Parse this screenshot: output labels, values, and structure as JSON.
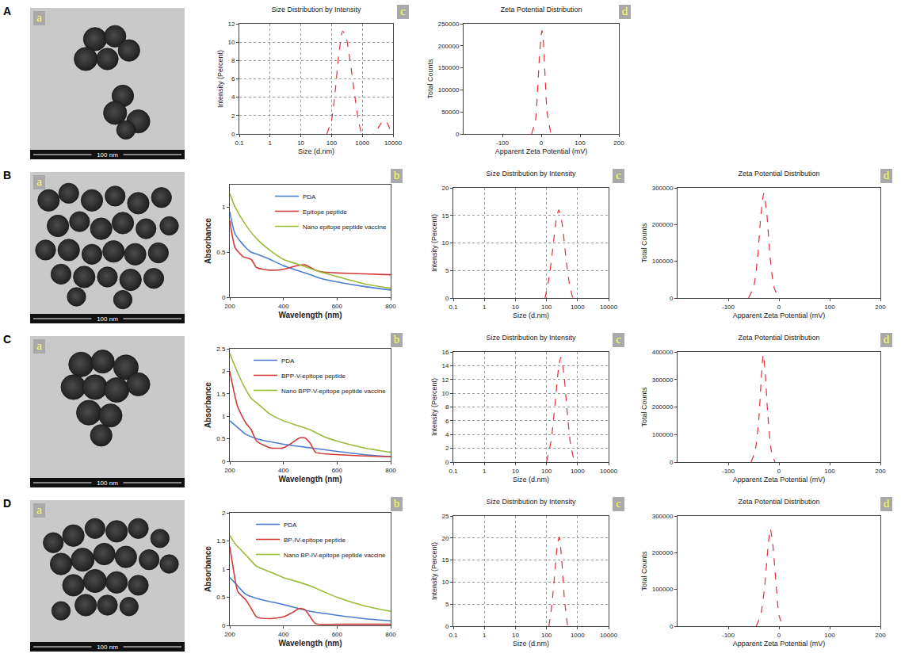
{
  "chart_data": [
    {
      "type": "image",
      "row": "A",
      "panel": "a",
      "scale_bar": "100 nm"
    },
    {
      "type": "line",
      "row": "A",
      "panel": "c",
      "title": "Size Distribution by Intensity",
      "x_label": "Size (d.nm)",
      "y_label": "Intensity (Percent)",
      "log": "x",
      "grid": true,
      "line_style": "dash",
      "color": "#e0303a",
      "xlim": [
        0.1,
        10000
      ],
      "xticks": [
        0.1,
        1,
        10,
        100,
        1000,
        10000
      ],
      "ylim": [
        0,
        12
      ],
      "yticks": [
        0,
        2,
        4,
        6,
        8,
        10,
        12
      ],
      "x": [
        70,
        100,
        130,
        170,
        230,
        300,
        400,
        550,
        750,
        1000,
        2400,
        3200,
        4200,
        5500,
        7000,
        8500
      ],
      "values": [
        0,
        1.5,
        4.5,
        8.5,
        11.2,
        10.5,
        8,
        4.5,
        1.5,
        0,
        0,
        0.6,
        1.2,
        1.5,
        1,
        0
      ]
    },
    {
      "type": "line",
      "row": "A",
      "panel": "d",
      "title": "Zeta Potential Distribution",
      "x_label": "Apparent Zeta Potential (mV)",
      "y_label": "Total Counts",
      "grid": false,
      "line_style": "dash",
      "color": "#e0303a",
      "xlim": [
        -200,
        200
      ],
      "xticks": [
        -100,
        0,
        100,
        200
      ],
      "ylim": [
        0,
        250000
      ],
      "yticks": [
        0,
        50000,
        100000,
        150000,
        200000,
        250000
      ],
      "x": [
        -25,
        -15,
        -10,
        -5,
        0,
        2,
        5,
        10,
        15,
        25
      ],
      "values": [
        0,
        30000,
        90000,
        170000,
        225000,
        235000,
        215000,
        130000,
        50000,
        0
      ]
    },
    {
      "type": "image",
      "row": "B",
      "panel": "a",
      "scale_bar": "100 nm"
    },
    {
      "type": "line",
      "row": "B",
      "panel": "b",
      "x_label": "Wavelength (nm)",
      "y_label": "Absorbance",
      "legend": "top-right",
      "grid": false,
      "xlim": [
        200,
        800
      ],
      "xticks": [
        200,
        400,
        600,
        800
      ],
      "ylim": [
        0,
        1.25
      ],
      "yticks": [
        0,
        0.5,
        1
      ],
      "series": [
        {
          "name": "PDA",
          "color": "#4a7fd0",
          "x": [
            200,
            220,
            260,
            280,
            300,
            350,
            400,
            450,
            500,
            550,
            600,
            700,
            800
          ],
          "values": [
            0.95,
            0.7,
            0.55,
            0.5,
            0.48,
            0.42,
            0.35,
            0.3,
            0.25,
            0.2,
            0.17,
            0.12,
            0.08
          ]
        },
        {
          "name": "Epitope peptide",
          "color": "#d23a3a",
          "x": [
            200,
            220,
            250,
            280,
            300,
            350,
            400,
            450,
            480,
            520,
            550,
            600,
            700,
            800
          ],
          "values": [
            0.85,
            0.55,
            0.45,
            0.42,
            0.33,
            0.3,
            0.31,
            0.35,
            0.36,
            0.3,
            0.28,
            0.27,
            0.26,
            0.25
          ]
        },
        {
          "name": "Nano epitope peptide vaccine",
          "color": "#9bbb3b",
          "x": [
            200,
            220,
            260,
            300,
            350,
            400,
            450,
            500,
            550,
            600,
            700,
            800
          ],
          "values": [
            1.15,
            1.0,
            0.8,
            0.65,
            0.52,
            0.42,
            0.37,
            0.32,
            0.27,
            0.23,
            0.15,
            0.1
          ]
        }
      ]
    },
    {
      "type": "line",
      "row": "B",
      "panel": "c",
      "title": "Size Distribution by Intensity",
      "x_label": "Size (d.nm)",
      "y_label": "Intensity (Percent)",
      "log": "x",
      "grid": true,
      "line_style": "dash",
      "color": "#e0303a",
      "xlim": [
        0.1,
        10000
      ],
      "xticks": [
        0.1,
        1,
        10,
        100,
        1000,
        10000
      ],
      "ylim": [
        0,
        20
      ],
      "yticks": [
        0,
        5,
        10,
        15,
        20
      ],
      "x": [
        90,
        120,
        160,
        210,
        250,
        320,
        420,
        550,
        700
      ],
      "values": [
        0,
        3.5,
        9,
        14.5,
        16,
        13.5,
        7.5,
        2.5,
        0
      ]
    },
    {
      "type": "line",
      "row": "B",
      "panel": "d",
      "title": "Zeta Potential Distribution",
      "x_label": "Apparent Zeta Potential (mV)",
      "y_label": "Total Counts",
      "grid": false,
      "line_style": "dash",
      "color": "#e0303a",
      "xlim": [
        -200,
        200
      ],
      "xticks": [
        -100,
        0,
        100,
        200
      ],
      "ylim": [
        0,
        300000
      ],
      "yticks": [
        0,
        100000,
        200000,
        300000
      ],
      "x": [
        -60,
        -50,
        -42,
        -36,
        -30,
        -24,
        -18,
        -10,
        0
      ],
      "values": [
        0,
        30000,
        110000,
        220000,
        285000,
        230000,
        120000,
        30000,
        0
      ]
    },
    {
      "type": "image",
      "row": "C",
      "panel": "a",
      "scale_bar": "100 nm"
    },
    {
      "type": "line",
      "row": "C",
      "panel": "b",
      "x_label": "Wavelength (nm)",
      "y_label": "Absorbance",
      "legend": "top-right",
      "grid": false,
      "xlim": [
        200,
        800
      ],
      "xticks": [
        200,
        400,
        600,
        800
      ],
      "ylim": [
        0,
        2.5
      ],
      "yticks": [
        0,
        0.5,
        1,
        1.5,
        2,
        2.5
      ],
      "series": [
        {
          "name": "PDA",
          "color": "#4a7fd0",
          "x": [
            200,
            220,
            260,
            300,
            400,
            500,
            600,
            700,
            800
          ],
          "values": [
            0.9,
            0.8,
            0.6,
            0.5,
            0.38,
            0.3,
            0.22,
            0.15,
            0.1
          ]
        },
        {
          "name": "BPP-V-epitope peptide",
          "color": "#d23a3a",
          "x": [
            200,
            210,
            230,
            260,
            280,
            300,
            350,
            400,
            430,
            460,
            480,
            500,
            520,
            600,
            700,
            800
          ],
          "values": [
            2.0,
            1.7,
            1.2,
            0.85,
            0.7,
            0.45,
            0.3,
            0.3,
            0.4,
            0.52,
            0.52,
            0.4,
            0.2,
            0.15,
            0.12,
            0.1
          ]
        },
        {
          "name": "Nano BPP-V-epitope peptide vaccine",
          "color": "#9bbb3b",
          "x": [
            200,
            220,
            250,
            280,
            300,
            350,
            400,
            450,
            500,
            550,
            600,
            700,
            800
          ],
          "values": [
            2.4,
            2.1,
            1.7,
            1.4,
            1.3,
            1.05,
            0.9,
            0.8,
            0.7,
            0.55,
            0.45,
            0.3,
            0.2
          ]
        }
      ]
    },
    {
      "type": "line",
      "row": "C",
      "panel": "c",
      "title": "Size Distribution by Intensity",
      "x_label": "Size (d.nm)",
      "y_label": "Intensity (Percent)",
      "log": "x",
      "grid": true,
      "line_style": "dash",
      "color": "#e0303a",
      "xlim": [
        0.1,
        10000
      ],
      "xticks": [
        0.1,
        1,
        10,
        100,
        1000,
        10000
      ],
      "ylim": [
        0,
        16
      ],
      "yticks": [
        0,
        2,
        4,
        6,
        8,
        10,
        12,
        14,
        16
      ],
      "x": [
        100,
        140,
        190,
        250,
        290,
        360,
        460,
        600,
        800
      ],
      "values": [
        0,
        3,
        8.5,
        14,
        15.2,
        13,
        7.5,
        2.5,
        0
      ]
    },
    {
      "type": "line",
      "row": "C",
      "panel": "d",
      "title": "Zeta Potential Distribution",
      "x_label": "Apparent Zeta Potential (mV)",
      "y_label": "Total Counts",
      "grid": false,
      "line_style": "dash",
      "color": "#e0303a",
      "xlim": [
        -200,
        200
      ],
      "xticks": [
        -100,
        0,
        100,
        200
      ],
      "ylim": [
        0,
        400000
      ],
      "yticks": [
        0,
        100000,
        200000,
        300000,
        400000
      ],
      "x": [
        -55,
        -47,
        -40,
        -35,
        -31,
        -27,
        -22,
        -15,
        -8
      ],
      "values": [
        0,
        40000,
        150000,
        300000,
        390000,
        320000,
        170000,
        40000,
        0
      ]
    },
    {
      "type": "image",
      "row": "D",
      "panel": "a",
      "scale_bar": "100 nm"
    },
    {
      "type": "line",
      "row": "D",
      "panel": "b",
      "x_label": "Wavelength (nm)",
      "y_label": "Absorbance",
      "legend": "top-right",
      "grid": false,
      "xlim": [
        200,
        800
      ],
      "xticks": [
        200,
        400,
        600,
        800
      ],
      "ylim": [
        0,
        2
      ],
      "yticks": [
        0,
        0.5,
        1,
        1.5,
        2
      ],
      "series": [
        {
          "name": "PDA",
          "color": "#4a7fd0",
          "x": [
            200,
            220,
            260,
            300,
            400,
            500,
            600,
            700,
            800
          ],
          "values": [
            0.85,
            0.75,
            0.55,
            0.48,
            0.37,
            0.25,
            0.18,
            0.12,
            0.08
          ]
        },
        {
          "name": "BP-IV-epitope peptide",
          "color": "#d23a3a",
          "x": [
            200,
            210,
            230,
            260,
            280,
            300,
            350,
            400,
            430,
            460,
            480,
            500,
            520,
            600,
            700,
            800
          ],
          "values": [
            1.4,
            1.1,
            0.6,
            0.45,
            0.3,
            0.15,
            0.12,
            0.15,
            0.22,
            0.3,
            0.28,
            0.15,
            0.03,
            0.02,
            0.02,
            0.02
          ]
        },
        {
          "name": "Nano BP-IV-epitope peptide vaccine",
          "color": "#9bbb3b",
          "x": [
            200,
            220,
            260,
            300,
            350,
            400,
            450,
            500,
            550,
            600,
            700,
            800
          ],
          "values": [
            1.6,
            1.45,
            1.25,
            1.05,
            0.95,
            0.85,
            0.78,
            0.7,
            0.6,
            0.5,
            0.35,
            0.25
          ]
        }
      ]
    },
    {
      "type": "line",
      "row": "D",
      "panel": "c",
      "title": "Size Distribution by Intensity",
      "x_label": "Size (d.nm)",
      "y_label": "Intensity (Percent)",
      "log": "x",
      "grid": true,
      "line_style": "dash",
      "color": "#e0303a",
      "xlim": [
        0.1,
        10000
      ],
      "xticks": [
        0.1,
        1,
        10,
        100,
        1000,
        10000
      ],
      "ylim": [
        0,
        25
      ],
      "yticks": [
        0,
        5,
        10,
        15,
        20,
        25
      ],
      "x": [
        120,
        150,
        190,
        230,
        260,
        310,
        380,
        480
      ],
      "values": [
        0,
        5,
        13,
        19,
        20.2,
        15,
        6,
        0
      ]
    },
    {
      "type": "line",
      "row": "D",
      "panel": "d",
      "title": "Zeta Potential Distribution",
      "x_label": "Apparent Zeta Potential (mV)",
      "y_label": "Total Counts",
      "grid": false,
      "line_style": "dash",
      "color": "#e0303a",
      "xlim": [
        -200,
        200
      ],
      "xticks": [
        -100,
        0,
        100,
        200
      ],
      "ylim": [
        0,
        300000
      ],
      "yticks": [
        0,
        100000,
        200000,
        300000
      ],
      "x": [
        -45,
        -36,
        -28,
        -22,
        -17,
        -12,
        -6,
        0,
        8
      ],
      "values": [
        0,
        30000,
        110000,
        210000,
        265000,
        220000,
        120000,
        30000,
        0
      ]
    }
  ]
}
